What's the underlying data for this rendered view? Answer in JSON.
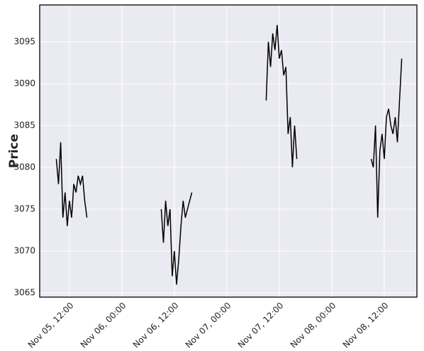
{
  "chart_data": {
    "type": "line",
    "ylabel": "Price",
    "x": [
      "Nov 05, 09:00",
      "Nov 05, 09:30",
      "Nov 05, 10:00",
      "Nov 05, 10:30",
      "Nov 05, 11:00",
      "Nov 05, 11:30",
      "Nov 05, 12:00",
      "Nov 05, 12:30",
      "Nov 05, 13:00",
      "Nov 05, 13:30",
      "Nov 05, 14:00",
      "Nov 05, 14:30",
      "Nov 05, 15:00",
      "Nov 05, 15:30",
      "Nov 05, 16:00",
      "Nov 06, 00:00",
      "Nov 06, 09:00",
      "Nov 06, 09:30",
      "Nov 06, 10:00",
      "Nov 06, 10:30",
      "Nov 06, 11:00",
      "Nov 06, 11:30",
      "Nov 06, 12:00",
      "Nov 06, 12:30",
      "Nov 06, 13:00",
      "Nov 06, 13:30",
      "Nov 06, 14:00",
      "Nov 06, 14:30",
      "Nov 06, 15:00",
      "Nov 06, 15:30",
      "Nov 06, 16:00",
      "Nov 07, 00:00",
      "Nov 07, 09:00",
      "Nov 07, 09:30",
      "Nov 07, 10:00",
      "Nov 07, 10:30",
      "Nov 07, 11:00",
      "Nov 07, 11:30",
      "Nov 07, 12:00",
      "Nov 07, 12:30",
      "Nov 07, 13:00",
      "Nov 07, 13:30",
      "Nov 07, 14:00",
      "Nov 07, 14:30",
      "Nov 07, 15:00",
      "Nov 07, 15:30",
      "Nov 07, 16:00",
      "Nov 08, 00:00",
      "Nov 08, 09:00",
      "Nov 08, 09:30",
      "Nov 08, 10:00",
      "Nov 08, 10:30",
      "Nov 08, 11:00",
      "Nov 08, 11:30",
      "Nov 08, 12:00",
      "Nov 08, 12:30",
      "Nov 08, 13:00",
      "Nov 08, 13:30",
      "Nov 08, 14:00",
      "Nov 08, 14:30",
      "Nov 08, 15:00",
      "Nov 08, 15:30",
      "Nov 08, 16:00"
    ],
    "series": [
      {
        "name": "Price",
        "color": "#000000",
        "values": [
          3081,
          3078,
          3083,
          3074,
          3077,
          3073,
          3076,
          3074,
          3078,
          3077,
          3079,
          3078,
          3079,
          3076,
          3074,
          null,
          3075,
          3071,
          3076,
          3073,
          3075,
          3067,
          3070,
          3066,
          3069,
          3073,
          3076,
          3074,
          3075,
          3076,
          3077,
          null,
          3088,
          3095,
          3092,
          3096,
          3094,
          3097,
          3093,
          3094,
          3091,
          3092,
          3084,
          3086,
          3080,
          3085,
          3081,
          null,
          3081,
          3080,
          3085,
          3074,
          3082,
          3084,
          3081,
          3086,
          3087,
          3085,
          3084,
          3086,
          3083,
          3088,
          3093
        ]
      }
    ],
    "xlim": [
      "Nov 05, 05:12",
      "Nov 08, 19:28"
    ],
    "xticks": [
      "Nov 05, 12:00",
      "Nov 06, 00:00",
      "Nov 06, 12:00",
      "Nov 07, 00:00",
      "Nov 07, 12:00",
      "Nov 08, 00:00",
      "Nov 08, 12:00"
    ],
    "ylim": [
      3064.5,
      3099.4
    ],
    "yticks": [
      3065,
      3070,
      3075,
      3080,
      3085,
      3090,
      3095
    ],
    "grid": true
  }
}
